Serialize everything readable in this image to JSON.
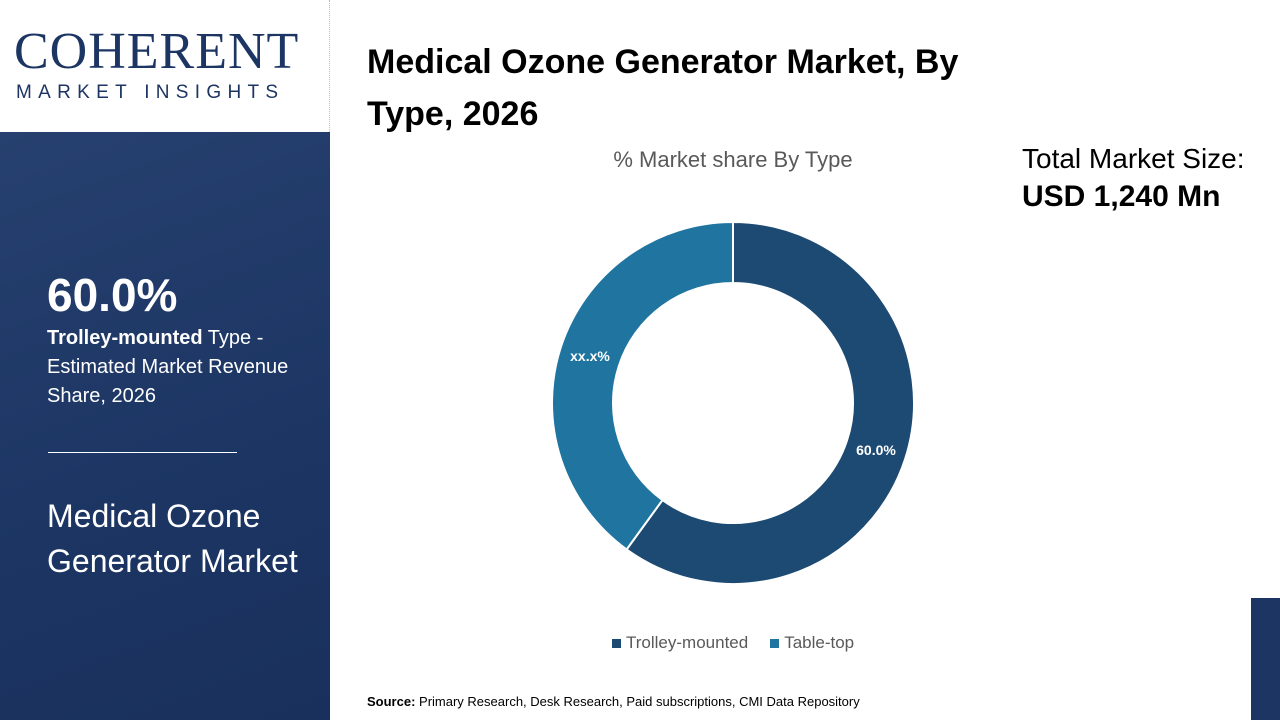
{
  "logo": {
    "line1": "COHERENT",
    "line2": "MARKET INSIGHTS"
  },
  "sidebar": {
    "highlight_value": "60.0%",
    "highlight_bold": "Trolley-mounted",
    "highlight_text": " Type - Estimated Market Revenue Share, 2026",
    "market_name": "Medical Ozone Generator Market"
  },
  "title": "Medical Ozone Generator Market, By Type, 2026",
  "total": {
    "label": "Total Market Size:",
    "value": "USD 1,240 Mn"
  },
  "source": {
    "label": "Source:",
    "text": " Primary Research, Desk Research, Paid subscriptions, CMI Data Repository"
  },
  "chart_data": {
    "type": "pie",
    "donut": true,
    "title": "% Market share By Type",
    "categories": [
      "Trolley-mounted",
      "Table-top"
    ],
    "values": [
      60.0,
      40.0
    ],
    "data_labels": [
      "60.0%",
      "xx.x%"
    ],
    "colors": [
      "#1d4a72",
      "#1f74a0"
    ],
    "legend": "bottom"
  }
}
